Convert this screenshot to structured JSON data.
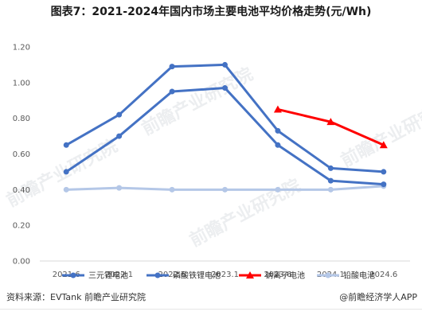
{
  "title": "图表7：2021-2024年国内市场主要电池平均价格走势(元/Wh)",
  "watermark": "前瞻产业研究院",
  "source": "资料来源：EVTank 前瞻产业研究院",
  "credit": "@前瞻经济学人APP",
  "chart_data": {
    "type": "line",
    "title": "图表7：2021-2024年国内市场主要电池平均价格走势(元/Wh)",
    "categories": [
      "2021.6",
      "2022.1",
      "2022.6",
      "2023.1",
      "2023.6",
      "2024.1",
      "2024.6"
    ],
    "ylim": [
      0,
      1.2
    ],
    "yticks": [
      "0.00",
      "0.20",
      "0.40",
      "0.60",
      "0.80",
      "1.00",
      "1.20"
    ],
    "legend_position": "bottom",
    "grid": false,
    "series": [
      {
        "name": "三元锂电池",
        "color": "#4472c4",
        "marker": "circle",
        "values": [
          0.65,
          0.82,
          1.09,
          1.1,
          0.73,
          0.52,
          0.5
        ]
      },
      {
        "name": "磷酸铁锂电池",
        "color": "#4472c4",
        "marker": "circle",
        "values": [
          0.5,
          0.7,
          0.95,
          0.97,
          0.65,
          0.45,
          0.43
        ]
      },
      {
        "name": "钠离子电池",
        "color": "#ff0000",
        "marker": "triangle",
        "values": [
          null,
          null,
          null,
          null,
          0.85,
          0.78,
          0.65
        ]
      },
      {
        "name": "铅酸电池",
        "color": "#b4c7e7",
        "marker": "circle",
        "values": [
          0.4,
          0.41,
          0.4,
          0.4,
          0.4,
          0.4,
          0.42
        ]
      }
    ]
  }
}
